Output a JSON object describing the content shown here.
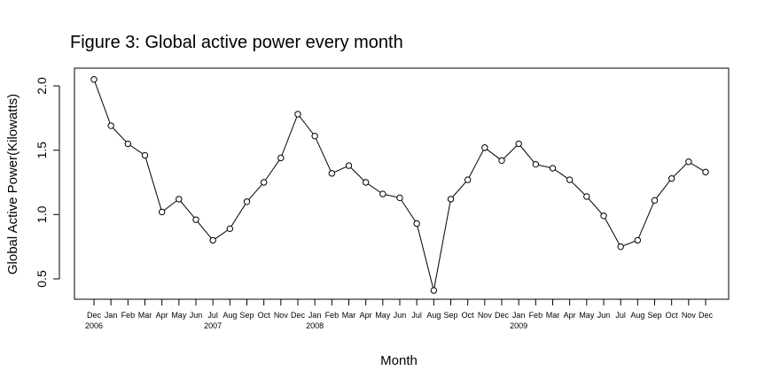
{
  "chart_data": {
    "type": "line",
    "title": "Figure 3: Global active power every month",
    "xlabel": "Month",
    "ylabel": "Global Active Power(Kilowatts)",
    "ylim": [
      0.38,
      2.1
    ],
    "yticks": [
      "0.5",
      "1.0",
      "1.5",
      "2.0"
    ],
    "ytick_values": [
      0.5,
      1.0,
      1.5,
      2.0
    ],
    "categories": [
      "Dec",
      "Jan",
      "Feb",
      "Mar",
      "Apr",
      "May",
      "Jun",
      "Jul",
      "Aug",
      "Sep",
      "Oct",
      "Nov",
      "Dec",
      "Jan",
      "Feb",
      "Mar",
      "Apr",
      "May",
      "Jun",
      "Jul",
      "Aug",
      "Sep",
      "Oct",
      "Nov",
      "Dec",
      "Jan",
      "Feb",
      "Mar",
      "Apr",
      "May",
      "Jun",
      "Jul",
      "Aug",
      "Sep",
      "Oct",
      "Nov",
      "Dec"
    ],
    "years": [
      {
        "label": "2006",
        "index": 0
      },
      {
        "label": "2007",
        "index": 7
      },
      {
        "label": "2008",
        "index": 13
      },
      {
        "label": "2009",
        "index": 25
      }
    ],
    "values": [
      2.05,
      1.69,
      1.55,
      1.46,
      1.02,
      1.12,
      0.96,
      0.8,
      0.89,
      1.1,
      1.25,
      1.44,
      1.78,
      1.61,
      1.32,
      1.38,
      1.25,
      1.16,
      1.13,
      0.93,
      0.41,
      1.12,
      1.27,
      1.52,
      1.42,
      1.55,
      1.39,
      1.36,
      1.27,
      1.14,
      0.99,
      0.75,
      0.8,
      1.11,
      1.28,
      1.41,
      1.33
    ],
    "grid": false,
    "marker": "open-circle",
    "line_color": "#000000"
  }
}
